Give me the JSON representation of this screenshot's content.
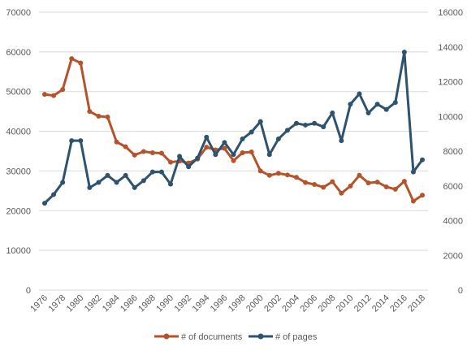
{
  "chart_data": {
    "type": "line",
    "title": "",
    "x": [
      1976,
      1977,
      1978,
      1979,
      1980,
      1981,
      1982,
      1983,
      1984,
      1985,
      1986,
      1987,
      1988,
      1989,
      1990,
      1991,
      1992,
      1993,
      1994,
      1995,
      1996,
      1997,
      1998,
      1999,
      2000,
      2001,
      2002,
      2003,
      2004,
      2005,
      2006,
      2007,
      2008,
      2009,
      2010,
      2011,
      2012,
      2013,
      2014,
      2015,
      2016,
      2017,
      2018
    ],
    "x_tick_labels": [
      "1976",
      "1978",
      "1980",
      "1982",
      "1984",
      "1986",
      "1988",
      "1990",
      "1992",
      "1994",
      "1996",
      "1998",
      "2000",
      "2002",
      "2004",
      "2006",
      "2008",
      "2010",
      "2012",
      "2014",
      "2016",
      "2018"
    ],
    "y_left": {
      "min": 0,
      "max": 70000,
      "ticks": [
        "0",
        "10000",
        "20000",
        "30000",
        "40000",
        "50000",
        "60000",
        "70000"
      ]
    },
    "y_right": {
      "min": 0,
      "max": 16000,
      "ticks": [
        "0",
        "2000",
        "4000",
        "6000",
        "8000",
        "10000",
        "12000",
        "14000",
        "16000"
      ]
    },
    "series": [
      {
        "name": "# of documents",
        "axis": "left",
        "color": "#b5532a",
        "values": [
          49300,
          49000,
          50500,
          58300,
          57200,
          45000,
          43800,
          43600,
          37300,
          36100,
          34000,
          34900,
          34600,
          34500,
          32200,
          32500,
          32000,
          33000,
          36000,
          35300,
          35700,
          32600,
          34600,
          34800,
          30000,
          28900,
          29400,
          29000,
          28400,
          27100,
          26600,
          25900,
          27300,
          24400,
          26200,
          28900,
          27000,
          27200,
          26000,
          25400,
          27400,
          22400,
          23900
        ]
      },
      {
        "name": "# of pages",
        "axis": "right",
        "color": "#2e536f",
        "values": [
          5000,
          5500,
          6200,
          8600,
          8600,
          5900,
          6200,
          6600,
          6200,
          6600,
          5900,
          6300,
          6800,
          6800,
          6100,
          7700,
          7100,
          7600,
          8800,
          7800,
          8500,
          7800,
          8700,
          9100,
          9700,
          7800,
          8700,
          9200,
          9600,
          9500,
          9600,
          9400,
          10200,
          8600,
          10700,
          11300,
          10200,
          10700,
          10400,
          10800,
          13700,
          6800,
          7500
        ]
      }
    ],
    "legend_position": "bottom",
    "grid": true
  }
}
